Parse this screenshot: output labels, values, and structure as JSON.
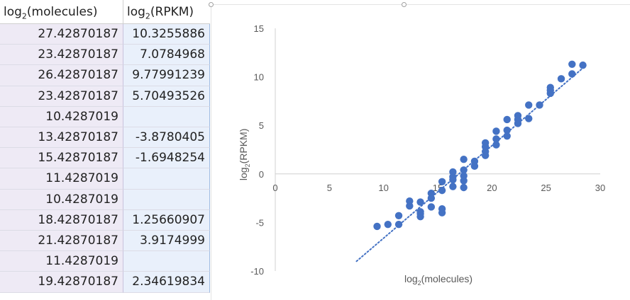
{
  "sheet": {
    "headers": [
      {
        "pre": "log",
        "sub": "2",
        "post": "(molecules)"
      },
      {
        "pre": "log",
        "sub": "2",
        "post": "(RPKM)"
      }
    ],
    "rows": [
      [
        "27.42870187",
        "10.3255886"
      ],
      [
        "23.42870187",
        "7.0784968"
      ],
      [
        "26.42870187",
        "9.77991239"
      ],
      [
        "23.42870187",
        "5.70493526"
      ],
      [
        "10.4287019",
        ""
      ],
      [
        "13.42870187",
        "-3.8780405"
      ],
      [
        "15.42870187",
        "-1.6948254"
      ],
      [
        "11.4287019",
        ""
      ],
      [
        "10.4287019",
        ""
      ],
      [
        "18.42870187",
        "1.25660907"
      ],
      [
        "21.42870187",
        "3.9174999"
      ],
      [
        "11.4287019",
        ""
      ],
      [
        "19.42870187",
        "2.34619834"
      ]
    ]
  },
  "chart_data": {
    "type": "scatter",
    "title": "",
    "xlabel": {
      "pre": "log",
      "sub": "2",
      "post": "(molecules)"
    },
    "ylabel": {
      "pre": "log",
      "sub": "2",
      "post": "(RPKM)"
    },
    "xlim": [
      0,
      30
    ],
    "ylim": [
      -10,
      15
    ],
    "xticks": [
      "0",
      "5",
      "10",
      "15",
      "20",
      "25",
      "30"
    ],
    "yticks": [
      "15",
      "10",
      "5",
      "0",
      "-5",
      "-10"
    ],
    "grid": false,
    "legend": "none",
    "marker_color": "#4472c4",
    "trendline": {
      "style": "dotted",
      "color": "#4472c4",
      "x_start": 7.5,
      "y_start": -9,
      "x_end": 28.5,
      "y_end": 11
    },
    "points": [
      [
        9.4,
        -5.4
      ],
      [
        10.4,
        -5.2
      ],
      [
        11.4,
        -5.2
      ],
      [
        11.4,
        -4.3
      ],
      [
        12.4,
        -3.3
      ],
      [
        12.4,
        -2.8
      ],
      [
        13.4,
        -4.4
      ],
      [
        13.4,
        -4.1
      ],
      [
        13.4,
        -3.9
      ],
      [
        13.4,
        -2.9
      ],
      [
        14.4,
        -3.4
      ],
      [
        14.4,
        -2.5
      ],
      [
        14.4,
        -2.0
      ],
      [
        15.4,
        -4.0
      ],
      [
        15.4,
        -3.6
      ],
      [
        15.4,
        -1.7
      ],
      [
        15.4,
        -0.8
      ],
      [
        16.4,
        -1.3
      ],
      [
        16.4,
        -0.6
      ],
      [
        16.4,
        -0.3
      ],
      [
        16.4,
        0.2
      ],
      [
        17.4,
        -1.4
      ],
      [
        17.4,
        -0.7
      ],
      [
        17.4,
        -0.2
      ],
      [
        17.4,
        0.4
      ],
      [
        17.4,
        1.5
      ],
      [
        18.4,
        0.8
      ],
      [
        18.4,
        1.3
      ],
      [
        19.4,
        1.9
      ],
      [
        19.4,
        2.3
      ],
      [
        19.4,
        2.8
      ],
      [
        19.4,
        3.2
      ],
      [
        20.4,
        3.0
      ],
      [
        20.4,
        3.6
      ],
      [
        20.4,
        4.4
      ],
      [
        21.4,
        3.9
      ],
      [
        21.4,
        4.5
      ],
      [
        21.4,
        5.6
      ],
      [
        22.4,
        5.2
      ],
      [
        22.4,
        5.6
      ],
      [
        22.4,
        6.0
      ],
      [
        23.4,
        5.7
      ],
      [
        23.4,
        7.1
      ],
      [
        24.4,
        7.1
      ],
      [
        25.4,
        8.3
      ],
      [
        25.4,
        8.6
      ],
      [
        25.4,
        8.9
      ],
      [
        26.4,
        9.8
      ],
      [
        27.4,
        10.3
      ],
      [
        27.4,
        11.3
      ],
      [
        28.4,
        11.2
      ]
    ]
  }
}
